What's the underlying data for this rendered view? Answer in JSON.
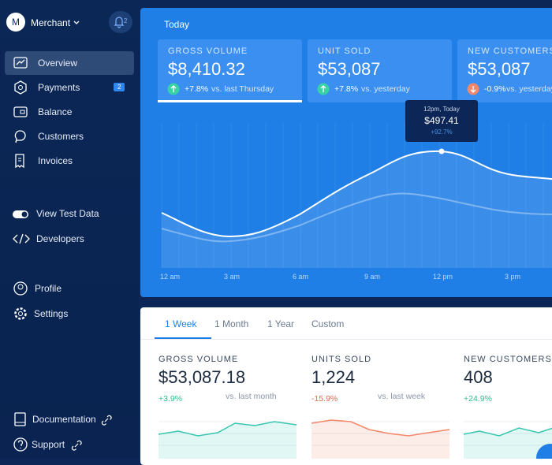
{
  "sidebar": {
    "avatar": "M",
    "account": "Merchant",
    "notification_count": "2",
    "nav": [
      {
        "label": "Overview"
      },
      {
        "label": "Payments",
        "badge": "2"
      },
      {
        "label": "Balance"
      },
      {
        "label": "Customers"
      },
      {
        "label": "Invoices"
      },
      {
        "label": "View Test Data"
      },
      {
        "label": "Developers"
      },
      {
        "label": "Profile"
      },
      {
        "label": "Settings"
      },
      {
        "label": "Documentation"
      },
      {
        "label": "Support"
      }
    ]
  },
  "today": {
    "title": "Today",
    "cards": [
      {
        "label": "GROSS VOLUME",
        "value": "$8,410.32",
        "change": "+7.8%",
        "comparison": "vs. last Thursday"
      },
      {
        "label": "UNIT SOLD",
        "value": "$53,087",
        "change": "+7.8%",
        "comparison": "vs. yesterday"
      },
      {
        "label": "NEW CUSTOMERS",
        "value": "$53,087",
        "change": "-0.9%",
        "comparison": "vs. yesterday"
      }
    ],
    "tooltip": {
      "time": "12pm, Today",
      "value": "$497.41",
      "change": "+92.7%"
    },
    "x_labels": [
      "12 am",
      "3 am",
      "6 am",
      "9 am",
      "12 pm",
      "3 pm"
    ]
  },
  "summary": {
    "tabs": [
      "1 Week",
      "1 Month",
      "1 Year",
      "Custom"
    ],
    "stats": [
      {
        "label": "GROSS VOLUME",
        "value": "$53,087.18",
        "change": "+3.9%",
        "comparison": "vs. last month"
      },
      {
        "label": "UNITS SOLD",
        "value": "1,224",
        "change": "-15.9%",
        "comparison": "vs. last week"
      },
      {
        "label": "NEW CUSTOMERS",
        "value": "408",
        "change": "+24.9%"
      }
    ]
  }
}
